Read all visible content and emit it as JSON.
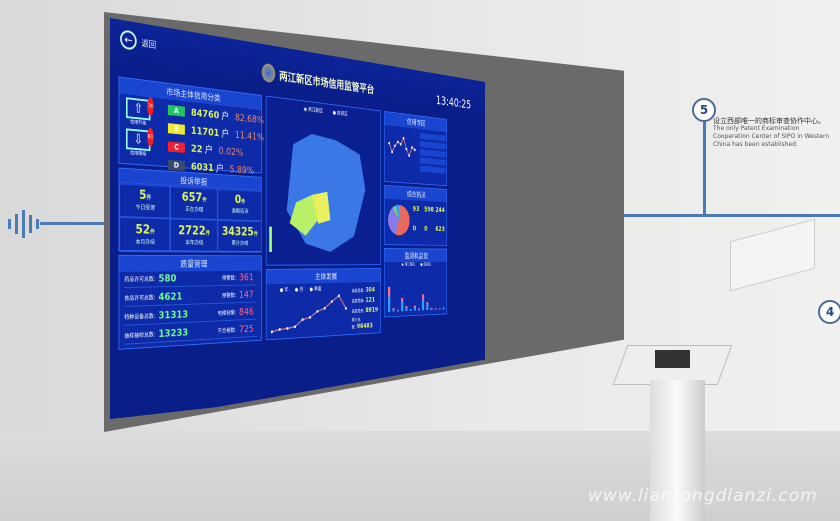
{
  "dashboard": {
    "back_label": "返回",
    "title": "两江新区市场信用监管平台",
    "clock": "13:40:25",
    "credit": {
      "title": "市场主体信用分类",
      "upgrade_label": "信用升级",
      "upgrade_badge": "76",
      "downgrade_label": "信用降级",
      "downgrade_badge": "63",
      "unit": "户",
      "grades": [
        {
          "g": "A",
          "count": "84760",
          "pct": "82.68%",
          "color": "#22c55e"
        },
        {
          "g": "B",
          "count": "11701",
          "pct": "11.41%",
          "color": "#eaea30"
        },
        {
          "g": "C",
          "count": "22",
          "pct": "0.02%",
          "color": "#ee2233"
        },
        {
          "g": "D",
          "count": "6031",
          "pct": "5.89%",
          "color": "#3a4a6a"
        }
      ]
    },
    "complaints": {
      "title": "投诉举报",
      "unit": "件",
      "items": [
        {
          "v": "5",
          "l": "今日受理"
        },
        {
          "v": "657",
          "l": "正在办理"
        },
        {
          "v": "0",
          "l": "逾期投诉"
        },
        {
          "v": "52",
          "l": "本月办结"
        },
        {
          "v": "2722",
          "l": "本年办结"
        },
        {
          "v": "34325",
          "l": "累计办结"
        }
      ]
    },
    "quality": {
      "title": "质量管理",
      "left": [
        {
          "l": "药品许可总数:",
          "v": "580"
        },
        {
          "l": "食品许可总数:",
          "v": "4621"
        },
        {
          "l": "特种设备总数:",
          "v": "31313"
        },
        {
          "l": "抽样抽检总数:",
          "v": "13233"
        }
      ],
      "right": [
        {
          "l": "预警数:",
          "v": "361"
        },
        {
          "l": "预警数:",
          "v": "147"
        },
        {
          "l": "电梯预警:",
          "v": "846"
        },
        {
          "l": "不合格数:",
          "v": "725"
        }
      ]
    },
    "map": {
      "radios": [
        "两江新区",
        "自贸区"
      ]
    },
    "development": {
      "title": "主体发展",
      "legend": [
        "年",
        "月",
        "季度"
      ],
      "stats": [
        {
          "l": "高危隐患:",
          "v": "304"
        },
        {
          "l": "高危隐患:",
          "v": "121"
        },
        {
          "l": "高危隐患:",
          "v": "8919"
        },
        {
          "l": "累计总数:",
          "v": "96483"
        }
      ]
    },
    "special": {
      "title": "信用专区"
    },
    "enforcement": {
      "title": "综合执法",
      "items": [
        {
          "v": "93"
        },
        {
          "v": "598"
        },
        {
          "v": "244"
        },
        {
          "v": "0"
        },
        {
          "v": "0"
        },
        {
          "v": "623"
        }
      ]
    },
    "monitor": {
      "title": "监测机监管",
      "legend": [
        "两江新区",
        "自贸区"
      ]
    }
  },
  "chart_data": [
    {
      "type": "line",
      "title": "主体发展",
      "x": [
        "2010",
        "2011",
        "2012",
        "2013",
        "2014",
        "2015",
        "2016",
        "2017",
        "2018",
        "2019",
        "2020"
      ],
      "series": [
        {
          "values": [
            2000,
            3000,
            3300,
            4000,
            7500,
            8500,
            11500,
            13000,
            16500,
            19500,
            12500
          ]
        }
      ],
      "ylim": [
        0,
        20000
      ]
    },
    {
      "type": "line",
      "title": "信用专区",
      "series": [
        {
          "values": [
            30,
            22,
            28,
            32,
            30,
            36,
            26,
            20,
            28,
            26
          ]
        }
      ]
    },
    {
      "type": "pie",
      "title": "综合执法",
      "values": [
        55,
        35,
        5,
        5
      ],
      "colors": [
        "#e86a5a",
        "#8a7ae8",
        "#6cd96c",
        "#3aa0ff"
      ]
    },
    {
      "type": "bar",
      "title": "监测机监管",
      "series": [
        {
          "values": [
            40,
            5,
            2,
            25,
            8,
            3,
            8,
            3,
            30,
            15,
            4,
            2,
            2,
            3
          ],
          "color": "#2aa0ff"
        },
        {
          "values": [
            50,
            8,
            3,
            20,
            10,
            2,
            10,
            4,
            25,
            12,
            3,
            2,
            2,
            3
          ],
          "color": "#ff6a8a"
        }
      ]
    }
  ],
  "wall": {
    "marker_5": "5",
    "marker_4": "4",
    "cn": "设立西部唯一的商标审查协作中心。",
    "en": "The only Patent Examination Cooperation Center of SIPO in Western China has been established.",
    "watermark": "www.lianrongdianzi.com"
  }
}
